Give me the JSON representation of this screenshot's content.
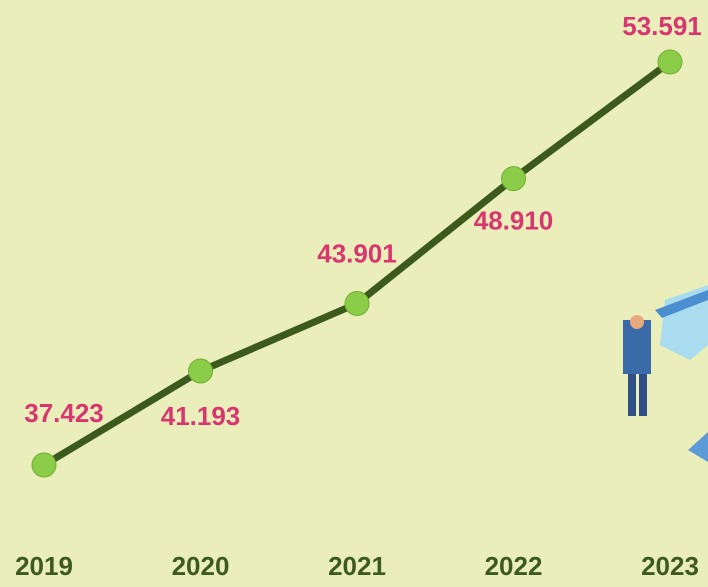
{
  "chart_data": {
    "type": "line",
    "categories": [
      "2019",
      "2020",
      "2021",
      "2022",
      "2023"
    ],
    "series": [
      {
        "color": "#3b5a1c",
        "values": [
          37.423,
          41.193,
          43.901,
          48.91,
          53.591
        ],
        "value_labels": [
          "37.423",
          "41.193",
          "43.901",
          "48.910",
          "53.591"
        ]
      }
    ]
  }
}
